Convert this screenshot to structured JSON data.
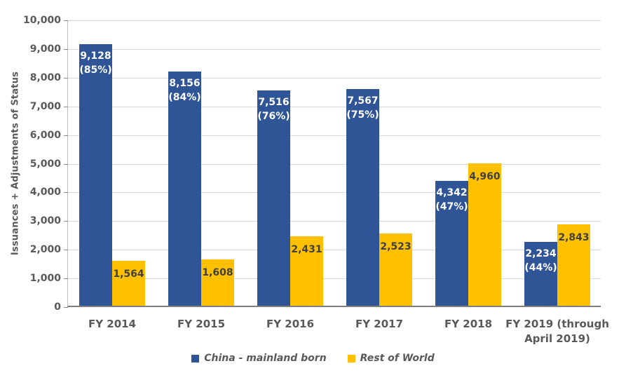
{
  "chart_data": {
    "type": "bar",
    "title": "",
    "xlabel": "",
    "ylabel": "Issuances + Adjustments of Status",
    "ylim": [
      0,
      10000
    ],
    "y_tick_step": 1000,
    "y_tick_labels": [
      "0",
      "1,000",
      "2,000",
      "3,000",
      "4,000",
      "5,000",
      "6,000",
      "7,000",
      "8,000",
      "9,000",
      "10,000"
    ],
    "grid": true,
    "legend_position": "bottom",
    "categories": [
      "FY 2014",
      "FY 2015",
      "FY 2016",
      "FY 2017",
      "FY 2018",
      "FY 2019 (through\nApril 2019)"
    ],
    "series": [
      {
        "name": "China - mainland born",
        "color": "#2F5597",
        "label_color": "#FFFFFF",
        "values": [
          9128,
          8156,
          7516,
          7567,
          4342,
          2234
        ],
        "value_labels": [
          "9,128",
          "8,156",
          "7,516",
          "7,567",
          "4,342",
          "2,234"
        ],
        "pct_labels": [
          "(85%)",
          "(84%)",
          "(76%)",
          "(75%)",
          "(47%)",
          "(44%)"
        ]
      },
      {
        "name": "Rest of World",
        "color": "#FFC000",
        "label_color": "#404040",
        "values": [
          1564,
          1608,
          2431,
          2523,
          4960,
          2843
        ],
        "value_labels": [
          "1,564",
          "1,608",
          "2,431",
          "2,523",
          "4,960",
          "2,843"
        ],
        "pct_labels": [
          "",
          "",
          "",
          "",
          "",
          ""
        ]
      }
    ],
    "style": {
      "gridline_color": "#D9D9D9",
      "axis_line_color": "#7F7F7F",
      "tick_text_color": "#595959",
      "background": "#FFFFFF"
    }
  }
}
